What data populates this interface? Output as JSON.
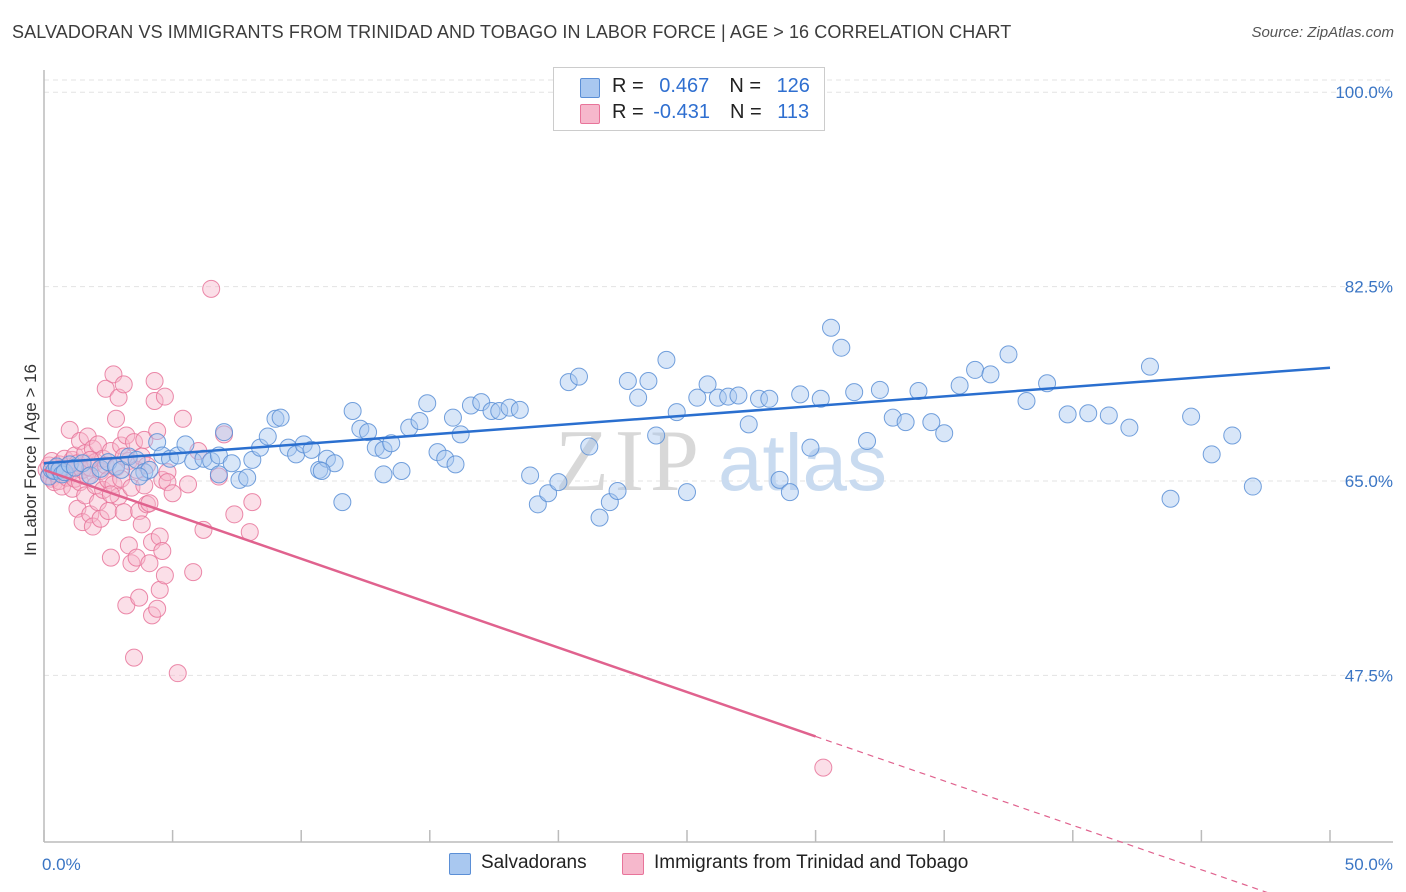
{
  "title": "SALVADORAN VS IMMIGRANTS FROM TRINIDAD AND TOBAGO IN LABOR FORCE | AGE > 16 CORRELATION CHART",
  "source": "Source: ZipAtlas.com",
  "watermark": {
    "zip": "ZIP",
    "atlas": "atlas"
  },
  "legend": {
    "rows": [
      {
        "r_label": "R = ",
        "r_value": "0.467",
        "n_label": "N = ",
        "n_value": "126"
      },
      {
        "r_label": "R = ",
        "r_value": "-0.431",
        "n_label": "N = ",
        "n_value": "113"
      }
    ]
  },
  "bottom_legend": {
    "series_1": "Salvadorans",
    "series_2": "Immigrants from Trinidad and Tobago"
  },
  "colors": {
    "blue_fill": "#a9c8f0",
    "blue_stroke": "#5b8fd6",
    "blue_line": "#2a6fcf",
    "pink_fill": "#f6b8cc",
    "pink_stroke": "#e8749a",
    "pink_line": "#e0628e",
    "grid": "#e3e3e3",
    "axis": "#bbbbbb",
    "tick_text": "#3a75c4"
  },
  "chart_data": {
    "type": "scatter",
    "title": "SALVADORAN VS IMMIGRANTS FROM TRINIDAD AND TOBAGO IN LABOR FORCE | AGE > 16 CORRELATION CHART",
    "xlabel": "",
    "ylabel": "In Labor Force | Age > 16",
    "xlim": [
      0,
      50
    ],
    "ylim": [
      32.5,
      102
    ],
    "x_tick_labels": [
      "0.0%",
      "50.0%"
    ],
    "y_ticks": [
      47.5,
      65.0,
      82.5,
      100.0
    ],
    "y_tick_labels": [
      "47.5%",
      "65.0%",
      "82.5%",
      "100.0%"
    ],
    "grid": true,
    "series": [
      {
        "name": "Salvadorans",
        "r": 0.467,
        "n": 126,
        "trend": {
          "x0": 0.0,
          "y0": 66.6,
          "x1": 50.0,
          "y1": 75.2
        },
        "points": [
          [
            0.2,
            65.4
          ],
          [
            0.3,
            66.0
          ],
          [
            0.4,
            65.9
          ],
          [
            0.5,
            66.3
          ],
          [
            0.6,
            66.0
          ],
          [
            0.7,
            65.6
          ],
          [
            0.8,
            65.8
          ],
          [
            1.0,
            66.5
          ],
          [
            1.2,
            66.2
          ],
          [
            1.5,
            66.6
          ],
          [
            1.8,
            65.5
          ],
          [
            2.2,
            66.1
          ],
          [
            2.5,
            66.7
          ],
          [
            2.8,
            66.3
          ],
          [
            3.0,
            66.0
          ],
          [
            3.3,
            67.2
          ],
          [
            3.6,
            66.9
          ],
          [
            3.9,
            65.8
          ],
          [
            4.1,
            66.0
          ],
          [
            4.4,
            68.5
          ],
          [
            4.6,
            67.3
          ],
          [
            4.9,
            67.0
          ],
          [
            5.2,
            67.3
          ],
          [
            5.5,
            68.3
          ],
          [
            5.8,
            66.8
          ],
          [
            6.2,
            67.0
          ],
          [
            6.5,
            66.8
          ],
          [
            6.8,
            67.3
          ],
          [
            7.0,
            69.4
          ],
          [
            7.3,
            66.6
          ],
          [
            7.6,
            65.1
          ],
          [
            7.9,
            65.3
          ],
          [
            8.1,
            66.9
          ],
          [
            8.4,
            68.0
          ],
          [
            8.7,
            69.0
          ],
          [
            9.0,
            70.6
          ],
          [
            9.2,
            70.7
          ],
          [
            9.5,
            68.0
          ],
          [
            9.8,
            67.4
          ],
          [
            10.1,
            68.3
          ],
          [
            10.4,
            67.8
          ],
          [
            10.7,
            66.0
          ],
          [
            11.0,
            67.0
          ],
          [
            11.3,
            66.6
          ],
          [
            11.6,
            63.1
          ],
          [
            12.0,
            71.3
          ],
          [
            12.3,
            69.7
          ],
          [
            12.6,
            69.4
          ],
          [
            12.9,
            68.0
          ],
          [
            13.2,
            67.8
          ],
          [
            13.5,
            68.4
          ],
          [
            13.9,
            65.9
          ],
          [
            14.2,
            69.8
          ],
          [
            14.6,
            70.4
          ],
          [
            14.9,
            72.0
          ],
          [
            15.3,
            67.6
          ],
          [
            15.6,
            67.0
          ],
          [
            15.9,
            70.7
          ],
          [
            16.2,
            69.2
          ],
          [
            16.6,
            71.8
          ],
          [
            17.0,
            72.1
          ],
          [
            17.4,
            71.3
          ],
          [
            17.7,
            71.3
          ],
          [
            18.1,
            71.6
          ],
          [
            18.5,
            71.4
          ],
          [
            18.9,
            65.5
          ],
          [
            19.2,
            62.9
          ],
          [
            19.6,
            63.9
          ],
          [
            20.0,
            64.9
          ],
          [
            20.4,
            73.9
          ],
          [
            20.8,
            74.4
          ],
          [
            21.2,
            68.1
          ],
          [
            21.6,
            61.7
          ],
          [
            22.0,
            63.1
          ],
          [
            22.3,
            64.1
          ],
          [
            22.7,
            74.0
          ],
          [
            23.1,
            72.5
          ],
          [
            23.5,
            74.0
          ],
          [
            23.8,
            69.1
          ],
          [
            24.2,
            75.9
          ],
          [
            24.6,
            71.2
          ],
          [
            25.0,
            64.0
          ],
          [
            25.4,
            72.5
          ],
          [
            25.8,
            73.7
          ],
          [
            26.2,
            72.5
          ],
          [
            26.6,
            72.6
          ],
          [
            27.0,
            72.7
          ],
          [
            27.4,
            70.1
          ],
          [
            27.8,
            72.4
          ],
          [
            28.2,
            72.4
          ],
          [
            28.6,
            65.1
          ],
          [
            29.0,
            64.0
          ],
          [
            29.4,
            72.8
          ],
          [
            29.8,
            68.0
          ],
          [
            30.2,
            72.4
          ],
          [
            30.6,
            78.8
          ],
          [
            31.0,
            77.0
          ],
          [
            31.5,
            73.0
          ],
          [
            32.0,
            68.6
          ],
          [
            32.5,
            73.2
          ],
          [
            33.0,
            70.7
          ],
          [
            33.5,
            70.3
          ],
          [
            34.0,
            73.1
          ],
          [
            34.5,
            70.3
          ],
          [
            35.0,
            69.3
          ],
          [
            35.6,
            73.6
          ],
          [
            36.2,
            75.0
          ],
          [
            36.8,
            74.6
          ],
          [
            37.5,
            76.4
          ],
          [
            38.2,
            72.2
          ],
          [
            39.0,
            73.8
          ],
          [
            39.8,
            71.0
          ],
          [
            40.6,
            71.1
          ],
          [
            41.4,
            70.9
          ],
          [
            42.2,
            69.8
          ],
          [
            43.0,
            75.3
          ],
          [
            43.8,
            63.4
          ],
          [
            44.6,
            70.8
          ],
          [
            45.4,
            67.4
          ],
          [
            46.2,
            69.1
          ],
          [
            47.0,
            64.5
          ],
          [
            3.7,
            65.4
          ],
          [
            6.8,
            65.6
          ],
          [
            10.8,
            65.9
          ],
          [
            13.2,
            65.6
          ],
          [
            16.0,
            66.5
          ]
        ]
      },
      {
        "name": "Immigrants from Trinidad and Tobago",
        "r": -0.431,
        "n": 113,
        "trend": {
          "x0": 0.0,
          "y0": 66.0,
          "x1": 30.0,
          "y1": 42.0,
          "dashed_to_x": 50.0
        },
        "points": [
          [
            0.1,
            66.0
          ],
          [
            0.2,
            65.5
          ],
          [
            0.2,
            66.4
          ],
          [
            0.3,
            65.2
          ],
          [
            0.3,
            66.8
          ],
          [
            0.4,
            65.9
          ],
          [
            0.4,
            64.9
          ],
          [
            0.5,
            66.2
          ],
          [
            0.5,
            65.6
          ],
          [
            0.6,
            66.5
          ],
          [
            0.6,
            65.0
          ],
          [
            0.7,
            66.0
          ],
          [
            0.7,
            64.5
          ],
          [
            0.8,
            65.8
          ],
          [
            0.8,
            67.0
          ],
          [
            0.9,
            65.3
          ],
          [
            0.9,
            66.3
          ],
          [
            1.0,
            65.7
          ],
          [
            1.0,
            69.6
          ],
          [
            1.1,
            66.9
          ],
          [
            1.1,
            64.3
          ],
          [
            1.2,
            67.3
          ],
          [
            1.2,
            65.2
          ],
          [
            1.3,
            66.6
          ],
          [
            1.3,
            62.5
          ],
          [
            1.4,
            68.6
          ],
          [
            1.4,
            64.9
          ],
          [
            1.5,
            66.0
          ],
          [
            1.5,
            61.3
          ],
          [
            1.6,
            67.5
          ],
          [
            1.6,
            63.7
          ],
          [
            1.7,
            65.4
          ],
          [
            1.7,
            69.0
          ],
          [
            1.8,
            66.2
          ],
          [
            1.8,
            62.0
          ],
          [
            1.9,
            67.9
          ],
          [
            1.9,
            60.9
          ],
          [
            2.0,
            64.6
          ],
          [
            2.0,
            66.7
          ],
          [
            2.1,
            68.3
          ],
          [
            2.1,
            63.1
          ],
          [
            2.2,
            65.9
          ],
          [
            2.2,
            61.6
          ],
          [
            2.3,
            67.0
          ],
          [
            2.3,
            64.2
          ],
          [
            2.4,
            66.4
          ],
          [
            2.4,
            73.3
          ],
          [
            2.5,
            65.1
          ],
          [
            2.5,
            62.3
          ],
          [
            2.6,
            67.7
          ],
          [
            2.6,
            58.1
          ],
          [
            2.7,
            64.7
          ],
          [
            2.7,
            74.6
          ],
          [
            2.8,
            66.2
          ],
          [
            2.8,
            70.6
          ],
          [
            2.9,
            72.5
          ],
          [
            2.9,
            63.6
          ],
          [
            3.0,
            68.2
          ],
          [
            3.0,
            65.2
          ],
          [
            3.1,
            73.7
          ],
          [
            3.1,
            62.2
          ],
          [
            3.2,
            69.1
          ],
          [
            3.2,
            53.8
          ],
          [
            3.3,
            66.8
          ],
          [
            3.3,
            59.2
          ],
          [
            3.4,
            64.4
          ],
          [
            3.4,
            57.6
          ],
          [
            3.5,
            68.5
          ],
          [
            3.5,
            49.1
          ],
          [
            3.6,
            66.0
          ],
          [
            3.6,
            58.1
          ],
          [
            3.7,
            62.3
          ],
          [
            3.7,
            54.5
          ],
          [
            3.8,
            67.2
          ],
          [
            3.8,
            61.1
          ],
          [
            3.9,
            68.7
          ],
          [
            3.9,
            64.6
          ],
          [
            4.0,
            66.4
          ],
          [
            4.0,
            62.9
          ],
          [
            4.1,
            63.0
          ],
          [
            4.1,
            57.6
          ],
          [
            4.2,
            59.5
          ],
          [
            4.2,
            52.9
          ],
          [
            4.3,
            72.2
          ],
          [
            4.3,
            74.0
          ],
          [
            4.4,
            69.5
          ],
          [
            4.4,
            53.5
          ],
          [
            4.5,
            60.0
          ],
          [
            4.5,
            55.2
          ],
          [
            4.6,
            65.1
          ],
          [
            4.6,
            58.7
          ],
          [
            4.7,
            72.6
          ],
          [
            4.7,
            56.5
          ],
          [
            4.8,
            65.8
          ],
          [
            4.8,
            64.9
          ],
          [
            5.0,
            63.9
          ],
          [
            5.2,
            47.7
          ],
          [
            5.4,
            70.6
          ],
          [
            5.6,
            64.7
          ],
          [
            5.8,
            56.8
          ],
          [
            6.0,
            67.7
          ],
          [
            6.2,
            60.6
          ],
          [
            6.5,
            82.3
          ],
          [
            6.8,
            65.4
          ],
          [
            7.0,
            69.2
          ],
          [
            7.4,
            62.0
          ],
          [
            8.0,
            60.4
          ],
          [
            8.1,
            63.1
          ],
          [
            2.6,
            63.8
          ],
          [
            1.8,
            66.9
          ],
          [
            3.1,
            67.2
          ],
          [
            0.6,
            66.1
          ],
          [
            30.3,
            39.2
          ]
        ]
      }
    ]
  }
}
